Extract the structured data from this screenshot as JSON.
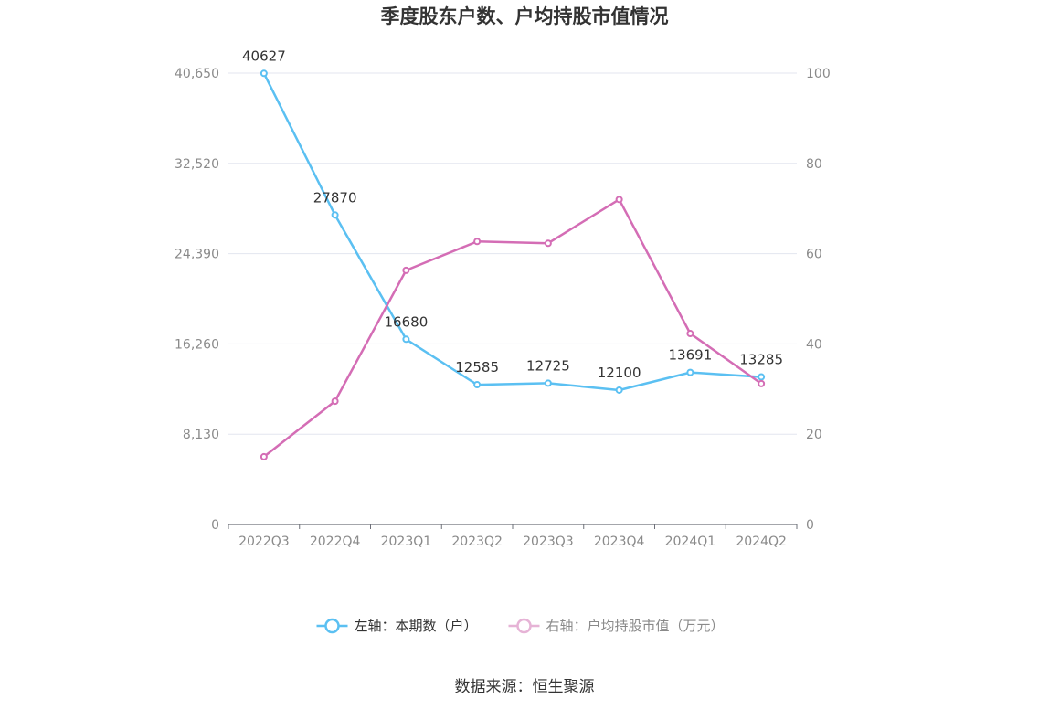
{
  "chart_data": {
    "type": "line",
    "title": "季度股东户数、户均持股市值情况",
    "categories": [
      "2022Q3",
      "2022Q4",
      "2023Q1",
      "2023Q2",
      "2023Q3",
      "2023Q4",
      "2024Q1",
      "2024Q2"
    ],
    "left_axis": {
      "ticks": [
        "0",
        "8,130",
        "16,260",
        "24,390",
        "32,520",
        "40,650"
      ],
      "min": 0,
      "max": 40650
    },
    "right_axis": {
      "ticks": [
        "0",
        "20",
        "40",
        "60",
        "80",
        "100"
      ],
      "min": 0,
      "max": 100
    },
    "series": [
      {
        "name": "左轴：本期数（户）",
        "axis": "left",
        "color": "#5bc0f2",
        "values": [
          40627,
          27870,
          16680,
          12585,
          12725,
          12100,
          13691,
          13285
        ],
        "labels": [
          "40627",
          "27870",
          "16680",
          "12585",
          "12725",
          "12100",
          "13691",
          "13285"
        ]
      },
      {
        "name": "右轴：户均持股市值（万元）",
        "axis": "right",
        "color": "#d46db5",
        "values": [
          15.0,
          27.3,
          56.3,
          62.7,
          62.3,
          72.0,
          42.3,
          31.2
        ]
      }
    ],
    "grid": true,
    "legend_position": "bottom"
  },
  "source": "数据来源：恒生聚源"
}
